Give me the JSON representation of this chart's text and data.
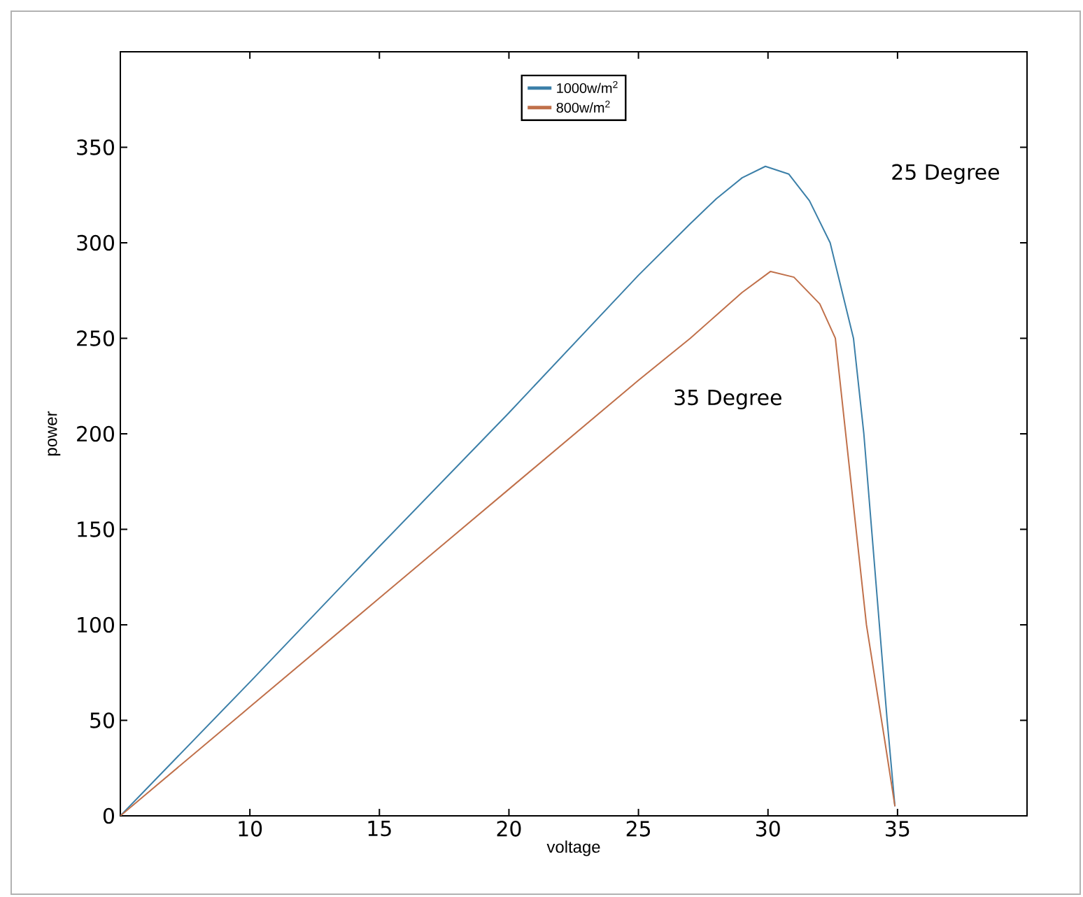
{
  "chart_data": {
    "type": "line",
    "xlabel": "voltage",
    "ylabel": "power",
    "xlim": [
      5,
      40
    ],
    "ylim": [
      0,
      400
    ],
    "xticks": [
      10,
      15,
      20,
      25,
      30,
      35
    ],
    "yticks": [
      0,
      50,
      100,
      150,
      200,
      250,
      300,
      350
    ],
    "legend": "top",
    "grid": false,
    "series": [
      {
        "name": "1000w/m$^{2}$",
        "color": "#3b7fa8",
        "x": [
          5,
          10,
          15,
          20,
          25,
          27,
          28,
          29,
          29.9,
          30.8,
          31.6,
          32.4,
          33.3,
          33.7,
          34.3,
          34.6,
          34.9
        ],
        "values": [
          0,
          70,
          141,
          211,
          283,
          310,
          323,
          334,
          340,
          336,
          322,
          300,
          250,
          200,
          100,
          50,
          5
        ]
      },
      {
        "name": "800w/m$^{2}$",
        "color": "#c0704a",
        "x": [
          5,
          10,
          15,
          20,
          25,
          27,
          28,
          29,
          30.1,
          31,
          32,
          32.6,
          33,
          33.8,
          34.5,
          34.9
        ],
        "values": [
          0,
          57,
          114,
          171,
          228,
          250,
          262,
          274,
          285,
          282,
          268,
          250,
          200,
          100,
          40,
          5
        ]
      }
    ],
    "annotations": [
      "25 Degree",
      "35 Degree"
    ]
  }
}
